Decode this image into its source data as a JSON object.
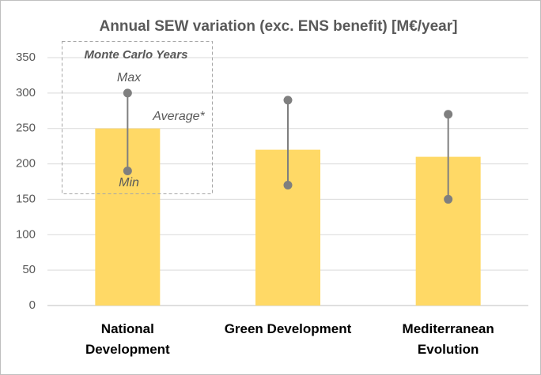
{
  "chart_data": {
    "type": "bar",
    "title": "Annual SEW variation (exc. ENS benefit) [M€/year]",
    "categories": [
      "National Development",
      "Green Development",
      "Mediterranean Evolution"
    ],
    "values": [
      250,
      220,
      210
    ],
    "min": [
      190,
      170,
      150
    ],
    "max": [
      300,
      290,
      270
    ],
    "color": "#ffd966",
    "range_color": "#7f7f7f",
    "ylim": [
      0,
      350
    ],
    "yticks": [
      0,
      50,
      100,
      150,
      200,
      250,
      300,
      350
    ],
    "grid": true,
    "legend_box": {
      "title": "Monte Carlo Years",
      "max_label": "Max",
      "average_label": "Average*",
      "min_label": "Min"
    }
  }
}
